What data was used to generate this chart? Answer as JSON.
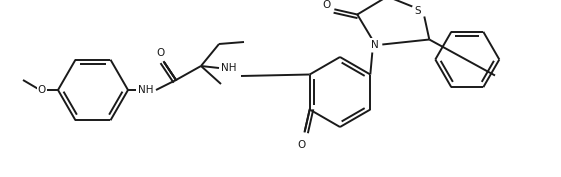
{
  "bg_color": "#ffffff",
  "bond_color": "#1a1a1a",
  "fig_width": 5.61,
  "fig_height": 1.77,
  "dpi": 100,
  "lw": 1.4,
  "font_size": 7.5,
  "xlim": [
    0,
    561
  ],
  "ylim": [
    0,
    177
  ]
}
